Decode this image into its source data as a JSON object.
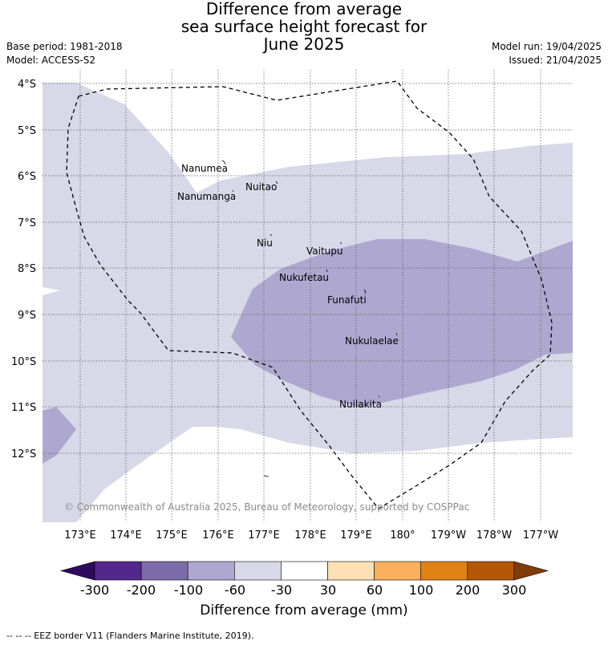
{
  "title": {
    "line1": "Difference from average",
    "line2": "sea surface height forecast for",
    "line3": "June 2025"
  },
  "meta": {
    "base_period": "Base period: 1981-2018",
    "model": "Model: ACCESS-S2",
    "model_run": "Model run: 19/04/2025",
    "issued": "Issued: 21/04/2025"
  },
  "map": {
    "lat_labels": [
      "4°S",
      "5°S",
      "6°S",
      "7°S",
      "8°S",
      "9°S",
      "10°S",
      "11°S",
      "12°S"
    ],
    "lon_labels": [
      "173°E",
      "174°E",
      "175°E",
      "176°E",
      "177°E",
      "178°E",
      "179°E",
      "180°",
      "179°W",
      "178°W",
      "177°W"
    ],
    "places": [
      {
        "name": "Nanumea"
      },
      {
        "name": "Nanumanga"
      },
      {
        "name": "Nuitao"
      },
      {
        "name": "Niu"
      },
      {
        "name": "Vaitupu"
      },
      {
        "name": "Nukufetau"
      },
      {
        "name": "Funafuti"
      },
      {
        "name": "Nukulaelae"
      },
      {
        "name": "Nuilakita"
      }
    ],
    "copyright": "© Commonwealth of Australia 2025, Bureau of Meteorology, supported by COSPPac"
  },
  "colorbar": {
    "ticks": [
      "-300",
      "-200",
      "-100",
      "-60",
      "-30",
      "30",
      "60",
      "100",
      "200",
      "300"
    ],
    "colors": [
      "#2d0a5e",
      "#54278f",
      "#7c6ba8",
      "#aea8d0",
      "#d9d8e8",
      "#ffffff",
      "#fee0b6",
      "#fdb05c",
      "#e08214",
      "#b35806",
      "#7f3b08"
    ],
    "label": "Difference from average (mm)"
  },
  "footer": "-- -- -- EEZ border V11 (Flanders Marine Institute, 2019)."
}
